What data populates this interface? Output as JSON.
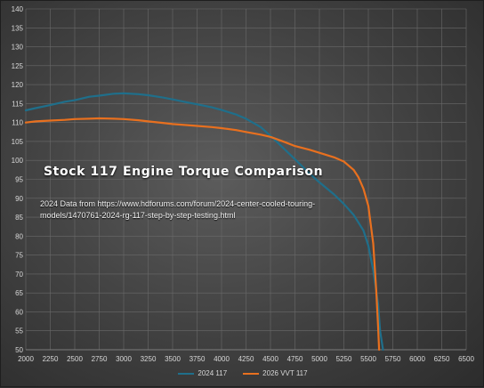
{
  "chart_data": {
    "type": "line",
    "title": "Stock 117 Engine Torque Comparison",
    "annotation": "2024 Data from https://www.hdforums.com/forum/2024-center-cooled-touring-models/1470761-2024-rg-117-step-by-step-testing.html",
    "xlim": [
      2000,
      6500
    ],
    "ylim": [
      50,
      140
    ],
    "x_ticks": [
      "2000",
      "2250",
      "2500",
      "2750",
      "3000",
      "3250",
      "3500",
      "3750",
      "4000",
      "4250",
      "4500",
      "4750",
      "5000",
      "5250",
      "5500",
      "5750",
      "6000",
      "6250",
      "6500"
    ],
    "y_ticks": [
      "50",
      "55",
      "60",
      "65",
      "70",
      "75",
      "80",
      "85",
      "90",
      "95",
      "100",
      "105",
      "110",
      "115",
      "120",
      "125",
      "130",
      "135",
      "140"
    ],
    "grid": true,
    "legend_position": "bottom",
    "series": [
      {
        "name": "2024 117",
        "color": "#1f6f8b",
        "x": [
          2000,
          2100,
          2250,
          2400,
          2500,
          2650,
          2750,
          2900,
          3000,
          3150,
          3250,
          3400,
          3500,
          3650,
          3750,
          3900,
          4000,
          4150,
          4250,
          4400,
          4500,
          4650,
          4750,
          4900,
          5000,
          5150,
          5250,
          5350,
          5450,
          5500,
          5550,
          5600,
          5620,
          5650
        ],
        "y": [
          113.2,
          113.8,
          114.6,
          115.5,
          115.9,
          116.8,
          117.1,
          117.6,
          117.7,
          117.5,
          117.2,
          116.6,
          116.1,
          115.3,
          114.8,
          114.0,
          113.3,
          112.1,
          111.0,
          108.8,
          106.5,
          102.8,
          100.3,
          96.5,
          94.2,
          91.0,
          88.5,
          85.6,
          81.5,
          77.5,
          71.0,
          62.0,
          55.0,
          50.0
        ]
      },
      {
        "name": "2026 VVT 117",
        "color": "#e8701f",
        "x": [
          2000,
          2100,
          2250,
          2400,
          2500,
          2650,
          2750,
          2900,
          3000,
          3150,
          3250,
          3400,
          3500,
          3650,
          3750,
          3900,
          4000,
          4150,
          4250,
          4400,
          4500,
          4650,
          4750,
          4900,
          5000,
          5150,
          5250,
          5350,
          5400,
          5450,
          5500,
          5550,
          5580,
          5600,
          5610
        ],
        "y": [
          110.0,
          110.3,
          110.5,
          110.7,
          110.9,
          111.0,
          111.1,
          111.0,
          110.9,
          110.6,
          110.3,
          109.9,
          109.6,
          109.3,
          109.1,
          108.8,
          108.5,
          108.0,
          107.5,
          106.8,
          106.2,
          104.8,
          103.8,
          102.8,
          102.0,
          100.8,
          99.7,
          97.5,
          95.5,
          92.5,
          88.0,
          78.0,
          66.0,
          56.0,
          50.0
        ]
      }
    ]
  }
}
